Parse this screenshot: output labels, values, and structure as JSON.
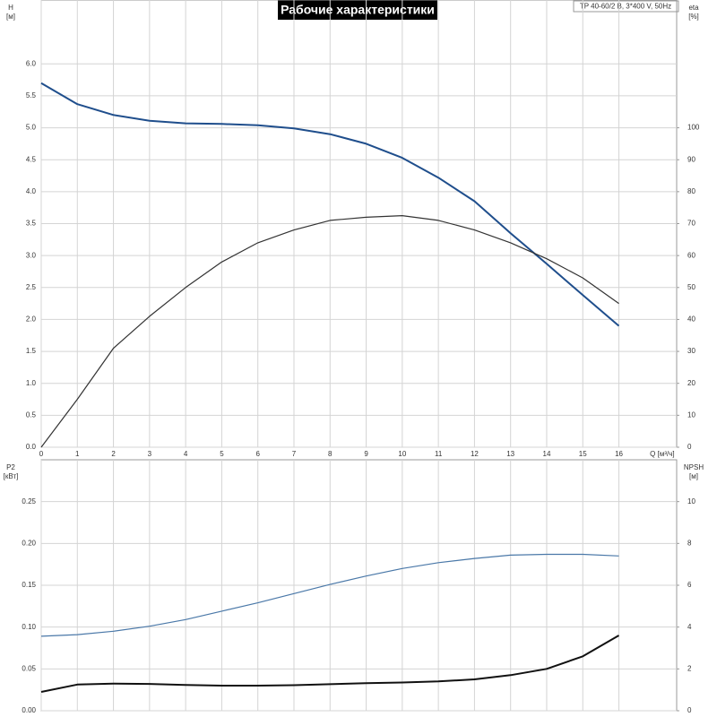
{
  "chart_data": [
    {
      "type": "line",
      "title": "Рабочие характеристики",
      "subtitle": "TP 40-60/2 B, 3*400 V, 50Hz",
      "x_label": "Q [м³/ч]",
      "y_label": "H",
      "y_unit": "[м]",
      "y2_label": "eta",
      "y2_unit": "[%]",
      "x": [
        0,
        1,
        2,
        3,
        4,
        5,
        6,
        7,
        8,
        9,
        10,
        11,
        12,
        13,
        14,
        15,
        16
      ],
      "xlim": [
        0,
        17.6
      ],
      "xticks": [
        0,
        1,
        2,
        3,
        4,
        5,
        6,
        7,
        8,
        9,
        10,
        11,
        12,
        13,
        14,
        15,
        16
      ],
      "ylim": [
        0,
        7.0
      ],
      "yticks": [
        {
          "value": 0,
          "label": "0.0"
        },
        {
          "value": 0.5,
          "label": "0.5"
        },
        {
          "value": 1,
          "label": "1.0"
        },
        {
          "value": 1.5,
          "label": "1.5"
        },
        {
          "value": 2,
          "label": "2.0"
        },
        {
          "value": 2.5,
          "label": "2.5"
        },
        {
          "value": 3,
          "label": "3.0"
        },
        {
          "value": 3.5,
          "label": "3.5"
        },
        {
          "value": 4,
          "label": "4.0"
        },
        {
          "value": 4.5,
          "label": "4.5"
        },
        {
          "value": 5,
          "label": "5.0"
        },
        {
          "value": 5.5,
          "label": "5.5"
        },
        {
          "value": 6,
          "label": "6.0"
        }
      ],
      "y2lim": [
        0,
        140
      ],
      "y2ticks": [
        0,
        10,
        20,
        30,
        40,
        50,
        60,
        70,
        80,
        90,
        100
      ],
      "grid": true,
      "series": [
        {
          "name": "H",
          "color": "#1f4e8c",
          "values": [
            5.7,
            5.37,
            5.2,
            5.11,
            5.07,
            5.06,
            5.04,
            4.99,
            4.9,
            4.75,
            4.53,
            4.22,
            3.85,
            3.35,
            2.87,
            2.38,
            1.9
          ]
        },
        {
          "name": "eta",
          "color": "#333333",
          "axis": "y2",
          "values": [
            0,
            15,
            31,
            41,
            50,
            58,
            64,
            68,
            71,
            72,
            72.5,
            71,
            68,
            64,
            59,
            53,
            45
          ]
        }
      ]
    },
    {
      "type": "line",
      "y_label": "P2",
      "y_unit": "[кВт]",
      "y2_label": "NPSH",
      "y2_unit": "[м]",
      "x": [
        0,
        1,
        2,
        3,
        4,
        5,
        6,
        7,
        8,
        9,
        10,
        11,
        12,
        13,
        14,
        15,
        16
      ],
      "xlim": [
        0,
        17.6
      ],
      "xticks": [
        0,
        1,
        2,
        3,
        4,
        5,
        6,
        7,
        8,
        9,
        10,
        11,
        12,
        13,
        14,
        15,
        16
      ],
      "ylim": [
        0,
        0.3
      ],
      "yticks": [
        {
          "value": 0,
          "label": "0.00"
        },
        {
          "value": 0.05,
          "label": "0.05"
        },
        {
          "value": 0.1,
          "label": "0.10"
        },
        {
          "value": 0.15,
          "label": "0.15"
        },
        {
          "value": 0.2,
          "label": "0.20"
        },
        {
          "value": 0.25,
          "label": "0.25"
        }
      ],
      "y2lim": [
        0,
        12
      ],
      "y2ticks": [
        0,
        2,
        4,
        6,
        8,
        10
      ],
      "grid": true,
      "series": [
        {
          "name": "P2",
          "color": "#4a78a8",
          "values": [
            0.089,
            0.091,
            0.095,
            0.101,
            0.109,
            0.119,
            0.129,
            0.14,
            0.151,
            0.161,
            0.17,
            0.177,
            0.182,
            0.186,
            0.187,
            0.187,
            0.185
          ]
        },
        {
          "name": "NPSH",
          "color": "#111111",
          "axis": "y2",
          "values": [
            0.9,
            1.25,
            1.3,
            1.28,
            1.23,
            1.2,
            1.2,
            1.22,
            1.27,
            1.32,
            1.35,
            1.4,
            1.5,
            1.7,
            2.0,
            2.6,
            3.6
          ]
        }
      ]
    }
  ]
}
